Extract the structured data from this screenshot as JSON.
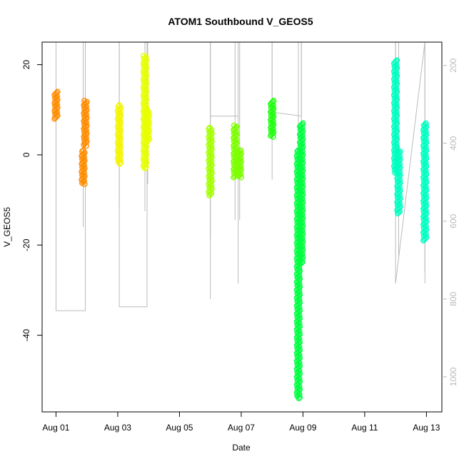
{
  "chart_data": {
    "type": "scatter",
    "title": "ATOM1 Southbound V_GEOS5",
    "xlabel": "Date",
    "ylabel": "V_GEOS5",
    "x_ticks": [
      "Aug 01",
      "Aug 03",
      "Aug 05",
      "Aug 07",
      "Aug 09",
      "Aug 11",
      "Aug 13"
    ],
    "x_tick_days": [
      1,
      3,
      5,
      7,
      9,
      11,
      13
    ],
    "xlim": [
      0.55,
      13.5
    ],
    "y_ticks": [
      20,
      0,
      -20,
      -40
    ],
    "ylim": [
      -57,
      25
    ],
    "right_axis": {
      "ticks": [
        200,
        400,
        600,
        800,
        1000
      ],
      "range": [
        140,
        1090
      ],
      "color": "#bbbbbb"
    },
    "grid": false,
    "colors": {
      "point_outline": "#000000",
      "right_axis_trace": "#bbbbbb"
    },
    "series": [
      {
        "color": "#ff8c00",
        "x_day": 1.0,
        "y_range": [
          8,
          14
        ]
      },
      {
        "color": "#ff8c00",
        "x_day": 1.88,
        "y_range": [
          -6.5,
          1
        ]
      },
      {
        "color": "#ff8c00",
        "x_day": 1.95,
        "y_range": [
          2,
          12
        ]
      },
      {
        "color": "#f4f400",
        "x_day": 3.05,
        "y_range": [
          -2,
          11
        ]
      },
      {
        "color": "#e8ff00",
        "x_day": 3.88,
        "y_range": [
          -3,
          22
        ]
      },
      {
        "color": "#e8ff00",
        "x_day": 3.97,
        "y_range": [
          3,
          10
        ]
      },
      {
        "color": "#a4ff00",
        "x_day": 6.0,
        "y_range": [
          -9,
          6
        ]
      },
      {
        "color": "#7cff00",
        "x_day": 6.8,
        "y_range": [
          -5,
          6.5
        ]
      },
      {
        "color": "#7cff00",
        "x_day": 6.95,
        "y_range": [
          -5,
          1
        ]
      },
      {
        "color": "#20ff10",
        "x_day": 8.0,
        "y_range": [
          4,
          12
        ]
      },
      {
        "color": "#00ff40",
        "x_day": 8.85,
        "y_range": [
          -54,
          1
        ]
      },
      {
        "color": "#00ff40",
        "x_day": 8.95,
        "y_range": [
          -24,
          7
        ]
      },
      {
        "color": "#00ffc0",
        "x_day": 12.0,
        "y_range": [
          -4,
          21
        ]
      },
      {
        "color": "#00ffc0",
        "x_day": 12.1,
        "y_range": [
          -13,
          1
        ]
      },
      {
        "color": "#00ffc0",
        "x_day": 12.95,
        "y_range": [
          -19,
          7
        ]
      }
    ],
    "right_axis_trace": [
      [
        1.0,
        260
      ],
      [
        1.0,
        830
      ],
      [
        1.95,
        830
      ],
      [
        1.95,
        140
      ],
      [
        3.05,
        140
      ],
      [
        3.05,
        820
      ],
      [
        3.95,
        820
      ],
      [
        3.95,
        140
      ],
      [
        6.0,
        140
      ],
      [
        6.0,
        800
      ],
      [
        6.0,
        330
      ],
      [
        6.9,
        330
      ],
      [
        6.9,
        760
      ],
      [
        6.9,
        140
      ],
      [
        8.0,
        140
      ],
      [
        8.0,
        320
      ],
      [
        8.95,
        330
      ],
      [
        8.95,
        140
      ],
      [
        12.0,
        140
      ],
      [
        12.0,
        760
      ],
      [
        12.95,
        140
      ],
      [
        12.95,
        730
      ]
    ]
  }
}
